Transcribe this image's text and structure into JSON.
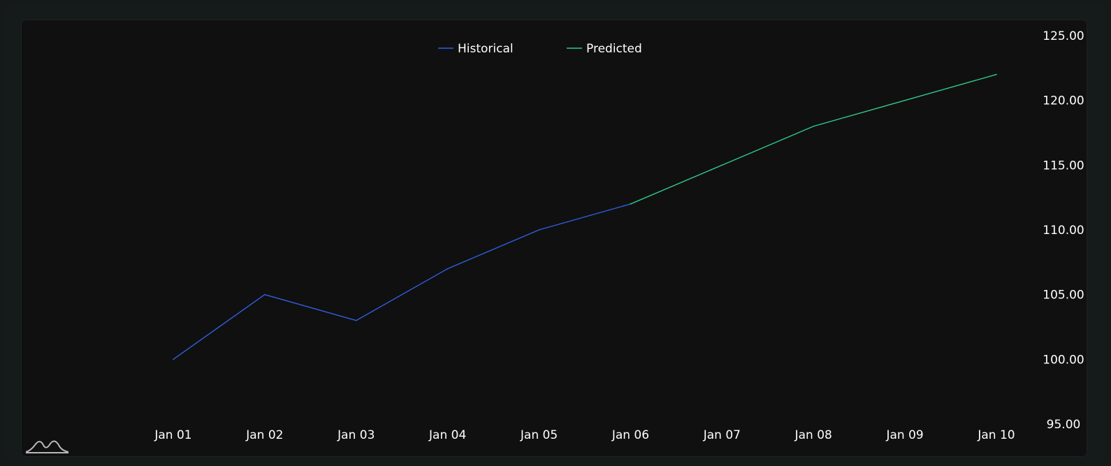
{
  "chart_data": {
    "type": "line",
    "title": "",
    "xlabel": "",
    "ylabel": "",
    "categories": [
      "Jan 01",
      "Jan 02",
      "Jan 03",
      "Jan 04",
      "Jan 05",
      "Jan 06",
      "Jan 07",
      "Jan 08",
      "Jan 09",
      "Jan 10"
    ],
    "ylim": [
      95,
      125
    ],
    "y_ticks": [
      "95.00",
      "100.00",
      "105.00",
      "110.00",
      "115.00",
      "120.00",
      "125.00"
    ],
    "y_axis_position": "right",
    "grid": false,
    "legend_position": "top-center",
    "series": [
      {
        "name": "Historical",
        "color": "#2f5fe0",
        "values": [
          100,
          105,
          103,
          107,
          110,
          112,
          null,
          null,
          null,
          null
        ]
      },
      {
        "name": "Predicted",
        "color": "#2fc98a",
        "values": [
          null,
          null,
          null,
          null,
          null,
          112,
          115,
          118,
          120,
          122
        ]
      }
    ]
  },
  "logo": {
    "icon": "waves-logo-icon"
  }
}
